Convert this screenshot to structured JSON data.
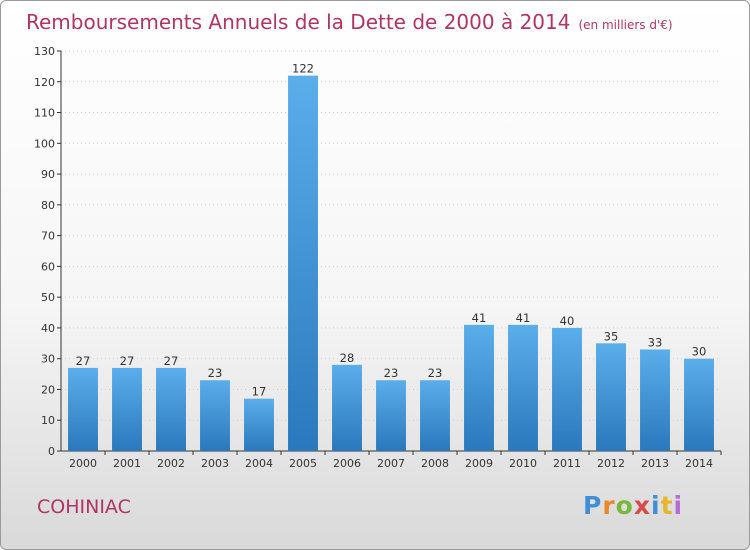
{
  "title": "Remboursements Annuels de la Dette de 2000 à 2014",
  "unit": "(en milliers d'€)",
  "place": "COHINIAC",
  "brand": "Proxiti",
  "colors": {
    "title": "#b03565",
    "bar_light": "#5aaeea",
    "bar_dark": "#2a78bd",
    "axis": "#333333",
    "grid": "#d0d0d0"
  },
  "chart_data": {
    "type": "bar",
    "title": "Remboursements Annuels de la Dette de 2000 à 2014",
    "xlabel": "",
    "ylabel": "",
    "categories": [
      "2000",
      "2001",
      "2002",
      "2003",
      "2004",
      "2005",
      "2006",
      "2007",
      "2008",
      "2009",
      "2010",
      "2011",
      "2012",
      "2013",
      "2014"
    ],
    "values": [
      27,
      27,
      27,
      23,
      17,
      122,
      28,
      23,
      23,
      41,
      41,
      40,
      35,
      33,
      30
    ],
    "ylim": [
      0,
      130
    ],
    "yticks": [
      0,
      10,
      20,
      30,
      40,
      50,
      60,
      70,
      80,
      90,
      100,
      110,
      120,
      130
    ],
    "grid": true,
    "data_labels": true
  }
}
